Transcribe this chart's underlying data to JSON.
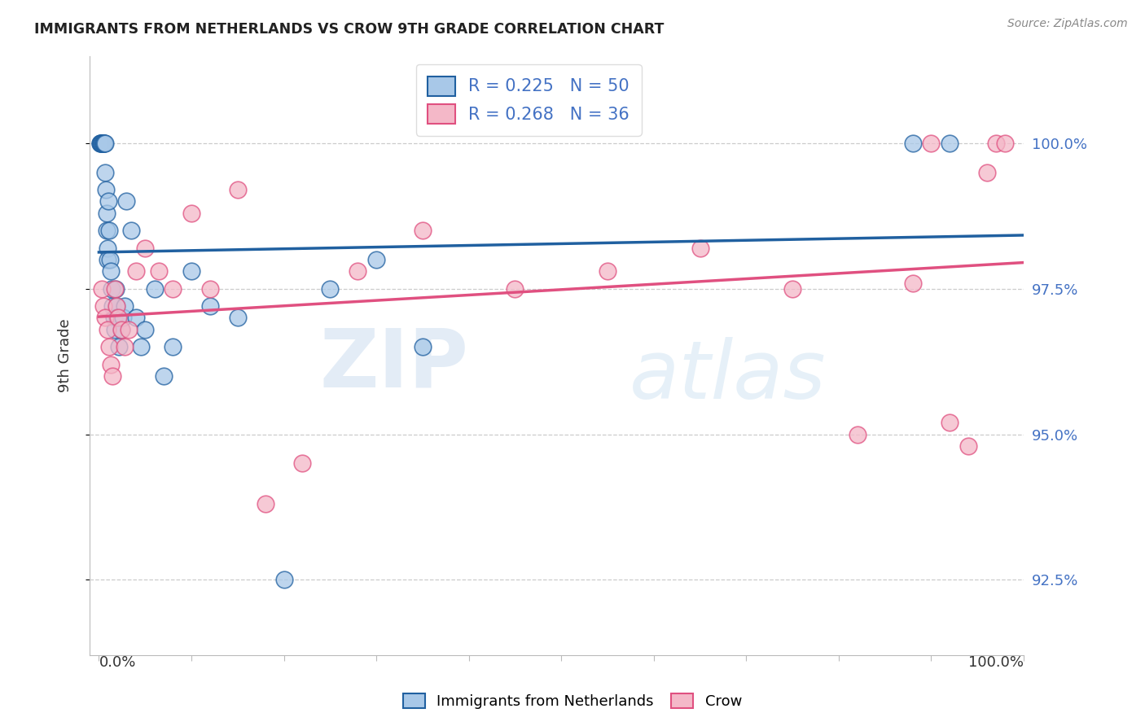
{
  "title": "IMMIGRANTS FROM NETHERLANDS VS CROW 9TH GRADE CORRELATION CHART",
  "source": "Source: ZipAtlas.com",
  "ylabel": "9th Grade",
  "ytick_values": [
    92.5,
    95.0,
    97.5,
    100.0
  ],
  "legend_blue_r": "R = 0.225",
  "legend_blue_n": "N = 50",
  "legend_pink_r": "R = 0.268",
  "legend_pink_n": "N = 36",
  "legend_blue_label": "Immigrants from Netherlands",
  "legend_pink_label": "Crow",
  "blue_color": "#a8c8e8",
  "pink_color": "#f4b8c8",
  "trendline_blue": "#2060a0",
  "trendline_pink": "#e05080",
  "blue_scatter_x": [
    0.1,
    0.15,
    0.2,
    0.25,
    0.3,
    0.35,
    0.4,
    0.45,
    0.5,
    0.55,
    0.6,
    0.65,
    0.7,
    0.75,
    0.8,
    0.85,
    0.9,
    0.95,
    1.0,
    1.1,
    1.2,
    1.3,
    1.4,
    1.5,
    1.6,
    1.7,
    1.8,
    1.9,
    2.0,
    2.2,
    2.4,
    2.6,
    2.8,
    3.0,
    3.5,
    4.0,
    4.5,
    5.0,
    6.0,
    7.0,
    8.0,
    10.0,
    12.0,
    15.0,
    20.0,
    25.0,
    30.0,
    35.0,
    88.0,
    92.0
  ],
  "blue_scatter_y": [
    100.0,
    100.0,
    100.0,
    100.0,
    100.0,
    100.0,
    100.0,
    100.0,
    100.0,
    100.0,
    100.0,
    100.0,
    99.5,
    99.2,
    98.8,
    98.5,
    98.2,
    98.0,
    99.0,
    98.5,
    98.0,
    97.8,
    97.5,
    97.2,
    97.0,
    96.8,
    97.5,
    97.2,
    97.0,
    96.5,
    96.8,
    97.0,
    97.2,
    99.0,
    98.5,
    97.0,
    96.5,
    96.8,
    97.5,
    96.0,
    96.5,
    97.8,
    97.2,
    97.0,
    92.5,
    97.5,
    98.0,
    96.5,
    100.0,
    100.0
  ],
  "pink_scatter_x": [
    0.3,
    0.5,
    0.7,
    0.9,
    1.1,
    1.3,
    1.5,
    1.7,
    1.9,
    2.1,
    2.4,
    2.8,
    3.2,
    4.0,
    5.0,
    6.5,
    8.0,
    10.0,
    12.0,
    15.0,
    18.0,
    22.0,
    28.0,
    35.0,
    45.0,
    55.0,
    65.0,
    75.0,
    82.0,
    88.0,
    90.0,
    92.0,
    94.0,
    96.0,
    97.0,
    98.0
  ],
  "pink_scatter_y": [
    97.5,
    97.2,
    97.0,
    96.8,
    96.5,
    96.2,
    96.0,
    97.5,
    97.2,
    97.0,
    96.8,
    96.5,
    96.8,
    97.8,
    98.2,
    97.8,
    97.5,
    98.8,
    97.5,
    99.2,
    93.8,
    94.5,
    97.8,
    98.5,
    97.5,
    97.8,
    98.2,
    97.5,
    95.0,
    97.6,
    100.0,
    95.2,
    94.8,
    99.5,
    100.0,
    100.0
  ]
}
